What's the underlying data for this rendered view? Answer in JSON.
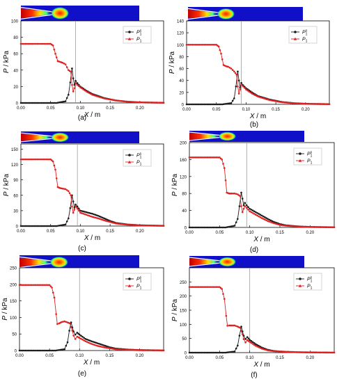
{
  "figure": {
    "shared": {
      "xlabel_var": "X",
      "xlabel_unit": " / m",
      "ylabel_var": "P",
      "ylabel_unit": " / kPa",
      "x_ticks": [
        "0.00",
        "0.05",
        "0.10",
        "0.15",
        "0.20"
      ],
      "legend": [
        {
          "base": "P",
          "sup": "s",
          "sub": "1",
          "marker": "circle",
          "color": "#1a1a1a"
        },
        {
          "base": "P",
          "sup": "",
          "sub": "1",
          "marker": "triangle",
          "color": "#e02020"
        }
      ],
      "colors": {
        "series1": "#1a1a1a",
        "series2": "#e02020",
        "field_bg": "#1010c8",
        "vline": "#9a9a9a"
      },
      "icons": {
        "field_image": "contour-field-image"
      }
    },
    "panels": [
      {
        "label": "(a)",
        "ylim": [
          0,
          100
        ],
        "y_ticks": [
          "0",
          "20",
          "40",
          "60",
          "80",
          "100"
        ]
      },
      {
        "label": "(b)",
        "ylim": [
          0,
          140
        ],
        "y_ticks": [
          "0",
          "20",
          "40",
          "60",
          "80",
          "100",
          "120",
          "140"
        ]
      },
      {
        "label": "(c)",
        "ylim": [
          0,
          160
        ],
        "y_ticks": [
          "0",
          "30",
          "60",
          "90",
          "120",
          "150"
        ]
      },
      {
        "label": "(d)",
        "ylim": [
          0,
          200
        ],
        "y_ticks": [
          "0",
          "40",
          "80",
          "120",
          "160",
          "200"
        ]
      },
      {
        "label": "(e)",
        "ylim": [
          0,
          250
        ],
        "y_ticks": [
          "0",
          "50",
          "100",
          "150",
          "200",
          "250"
        ]
      },
      {
        "label": "(f)",
        "ylim": [
          0,
          300
        ],
        "y_ticks": [
          "0",
          "50",
          "100",
          "150",
          "200",
          "250"
        ]
      }
    ]
  },
  "chart_data": [
    {
      "type": "line",
      "xlim": [
        0,
        0.24
      ],
      "ylim": [
        0,
        100
      ],
      "vline_x": 0.092,
      "series": [
        {
          "x": [
            0.0,
            0.06,
            0.075,
            0.08,
            0.083,
            0.086,
            0.088,
            0.09,
            0.092,
            0.095,
            0.1,
            0.11,
            0.12,
            0.14,
            0.16,
            0.18,
            0.2,
            0.24
          ],
          "values": [
            0,
            0,
            2,
            10,
            25,
            42,
            30,
            22,
            27,
            24,
            20,
            15,
            11,
            6,
            3,
            1.5,
            0.7,
            0.2
          ]
        },
        {
          "x": [
            0.0,
            0.05,
            0.054,
            0.058,
            0.062,
            0.066,
            0.07,
            0.075,
            0.08,
            0.084,
            0.086,
            0.088,
            0.09,
            0.092,
            0.095,
            0.1,
            0.11,
            0.12,
            0.14,
            0.16,
            0.18,
            0.2,
            0.24
          ],
          "values": [
            72,
            72,
            70,
            60,
            51,
            50,
            49,
            47,
            40,
            38,
            22,
            14,
            18,
            24,
            22,
            19,
            14,
            10,
            5.5,
            3,
            1.5,
            0.7,
            0.2
          ]
        }
      ]
    },
    {
      "type": "line",
      "xlim": [
        0,
        0.24
      ],
      "ylim": [
        0,
        140
      ],
      "vline_x": 0.092,
      "series": [
        {
          "x": [
            0.0,
            0.06,
            0.075,
            0.08,
            0.083,
            0.086,
            0.088,
            0.09,
            0.092,
            0.095,
            0.1,
            0.11,
            0.12,
            0.14,
            0.16,
            0.18,
            0.2,
            0.24
          ],
          "values": [
            0,
            0,
            2,
            10,
            30,
            55,
            40,
            28,
            36,
            32,
            27,
            20,
            14,
            8,
            4,
            2,
            1,
            0.3
          ]
        },
        {
          "x": [
            0.0,
            0.05,
            0.054,
            0.058,
            0.062,
            0.066,
            0.07,
            0.075,
            0.08,
            0.084,
            0.086,
            0.088,
            0.09,
            0.092,
            0.095,
            0.1,
            0.11,
            0.12,
            0.14,
            0.16,
            0.18,
            0.2,
            0.24
          ],
          "values": [
            100,
            100,
            97,
            85,
            66,
            64,
            63,
            60,
            55,
            50,
            30,
            18,
            25,
            33,
            30,
            25,
            18,
            13,
            7,
            3.5,
            1.8,
            0.8,
            0.3
          ]
        }
      ]
    },
    {
      "type": "line",
      "xlim": [
        0,
        0.24
      ],
      "ylim": [
        0,
        160
      ],
      "vline_x": 0.095,
      "series": [
        {
          "x": [
            0.0,
            0.06,
            0.075,
            0.08,
            0.083,
            0.086,
            0.088,
            0.09,
            0.092,
            0.095,
            0.1,
            0.11,
            0.12,
            0.13,
            0.14,
            0.15,
            0.16,
            0.18,
            0.2,
            0.24
          ],
          "values": [
            0,
            0,
            3,
            15,
            35,
            60,
            48,
            36,
            42,
            38,
            30,
            27,
            24,
            20,
            15,
            10,
            6,
            3,
            1.5,
            0.5
          ]
        },
        {
          "x": [
            0.0,
            0.05,
            0.054,
            0.058,
            0.062,
            0.066,
            0.07,
            0.075,
            0.08,
            0.084,
            0.086,
            0.088,
            0.09,
            0.092,
            0.095,
            0.1,
            0.11,
            0.12,
            0.13,
            0.14,
            0.15,
            0.16,
            0.18,
            0.2,
            0.24
          ],
          "values": [
            130,
            130,
            126,
            110,
            76,
            74,
            73,
            72,
            68,
            60,
            38,
            26,
            32,
            38,
            34,
            26,
            22,
            18,
            15,
            11,
            8,
            5,
            2.5,
            1.2,
            0.4
          ]
        }
      ]
    },
    {
      "type": "line",
      "xlim": [
        0,
        0.24
      ],
      "ylim": [
        0,
        200
      ],
      "vline_x": 0.095,
      "series": [
        {
          "x": [
            0.0,
            0.06,
            0.075,
            0.08,
            0.083,
            0.086,
            0.088,
            0.09,
            0.092,
            0.095,
            0.1,
            0.11,
            0.12,
            0.13,
            0.14,
            0.15,
            0.16,
            0.18,
            0.2,
            0.24
          ],
          "values": [
            0,
            0,
            4,
            20,
            50,
            82,
            68,
            52,
            58,
            52,
            44,
            36,
            28,
            20,
            13,
            8,
            5,
            2.5,
            1.2,
            0.4
          ]
        },
        {
          "x": [
            0.0,
            0.05,
            0.054,
            0.058,
            0.062,
            0.066,
            0.07,
            0.075,
            0.08,
            0.084,
            0.086,
            0.088,
            0.09,
            0.092,
            0.095,
            0.1,
            0.11,
            0.12,
            0.13,
            0.14,
            0.15,
            0.16,
            0.18,
            0.2,
            0.24
          ],
          "values": [
            165,
            165,
            160,
            140,
            82,
            80,
            80,
            80,
            78,
            74,
            50,
            36,
            44,
            50,
            46,
            38,
            30,
            22,
            15,
            10,
            6,
            4,
            2,
            1,
            0.3
          ]
        }
      ]
    },
    {
      "type": "line",
      "xlim": [
        0,
        0.24
      ],
      "ylim": [
        0,
        250
      ],
      "vline_x": 0.1,
      "series": [
        {
          "x": [
            0.0,
            0.06,
            0.075,
            0.08,
            0.083,
            0.086,
            0.088,
            0.09,
            0.093,
            0.096,
            0.1,
            0.11,
            0.12,
            0.13,
            0.14,
            0.15,
            0.16,
            0.18,
            0.2,
            0.24
          ],
          "values": [
            0,
            0,
            4,
            25,
            60,
            85,
            70,
            58,
            48,
            54,
            48,
            35,
            28,
            22,
            16,
            10,
            6,
            3,
            1.5,
            0.4
          ]
        },
        {
          "x": [
            0.0,
            0.05,
            0.054,
            0.058,
            0.061,
            0.063,
            0.066,
            0.07,
            0.075,
            0.08,
            0.084,
            0.088,
            0.09,
            0.093,
            0.096,
            0.1,
            0.11,
            0.12,
            0.13,
            0.14,
            0.15,
            0.16,
            0.18,
            0.2,
            0.24
          ],
          "values": [
            198,
            198,
            190,
            160,
            110,
            80,
            82,
            86,
            88,
            85,
            82,
            60,
            45,
            35,
            42,
            38,
            28,
            20,
            14,
            10,
            7,
            4,
            2,
            1,
            0.3
          ]
        }
      ]
    },
    {
      "type": "line",
      "xlim": [
        0,
        0.24
      ],
      "ylim": [
        0,
        300
      ],
      "vline_x": 0.1,
      "series": [
        {
          "x": [
            0.0,
            0.06,
            0.075,
            0.08,
            0.083,
            0.086,
            0.088,
            0.09,
            0.093,
            0.096,
            0.1,
            0.11,
            0.12,
            0.13,
            0.14,
            0.15,
            0.16,
            0.18,
            0.2,
            0.24
          ],
          "values": [
            0,
            0,
            4,
            25,
            60,
            92,
            75,
            60,
            48,
            55,
            45,
            30,
            18,
            10,
            6,
            4,
            3,
            1.5,
            0.8,
            0.2
          ]
        },
        {
          "x": [
            0.0,
            0.05,
            0.054,
            0.058,
            0.061,
            0.063,
            0.066,
            0.07,
            0.075,
            0.08,
            0.084,
            0.088,
            0.09,
            0.093,
            0.096,
            0.1,
            0.11,
            0.12,
            0.13,
            0.14,
            0.15,
            0.16,
            0.18,
            0.2,
            0.24
          ],
          "values": [
            232,
            232,
            225,
            190,
            130,
            95,
            96,
            96,
            96,
            92,
            88,
            65,
            48,
            36,
            44,
            38,
            24,
            14,
            8,
            5,
            4,
            3,
            1.5,
            0.8,
            0.2
          ]
        }
      ]
    }
  ]
}
